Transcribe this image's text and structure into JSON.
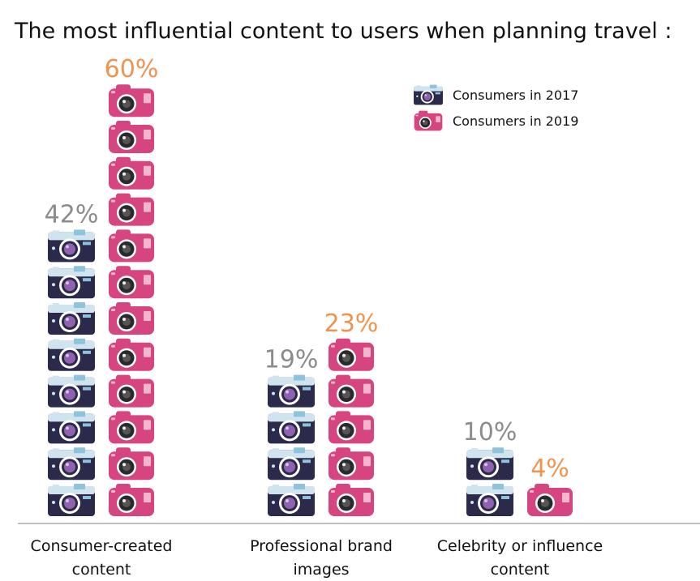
{
  "chart_data": {
    "type": "bar",
    "title": "The most influential content to users when planning travel :",
    "categories": [
      [
        "Consumer-created",
        "content"
      ],
      [
        "Professional brand",
        "images"
      ],
      [
        "Celebrity or influence",
        "content"
      ]
    ],
    "series": [
      {
        "name": "Consumers in 2017",
        "values": [
          42,
          19,
          10
        ],
        "labels": [
          "42%",
          "19%",
          "10%"
        ],
        "color": "#2b2a4a",
        "label_color": "#8c8c8c"
      },
      {
        "name": "Consumers in 2019",
        "values": [
          60,
          23,
          4
        ],
        "labels": [
          "60%",
          "23%",
          "4%"
        ],
        "color": "#d6457f",
        "label_color": "#ef9450"
      }
    ],
    "unit": "%",
    "legend_position": "top-right",
    "baseline_color": "#bfbfbf"
  }
}
